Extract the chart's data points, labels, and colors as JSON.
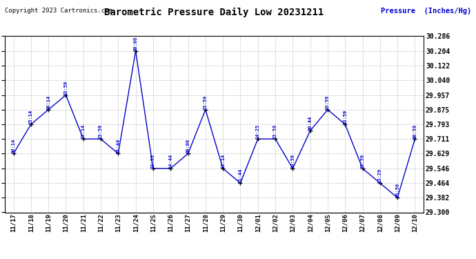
{
  "title": "Barometric Pressure Daily Low 20231211",
  "ylabel": "Pressure  (Inches/Hg)",
  "copyright": "Copyright 2023 Cartronics.com",
  "line_color": "#0000cc",
  "background_color": "#ffffff",
  "grid_color": "#bbbbbb",
  "ylim": [
    29.3,
    30.286
  ],
  "yticks": [
    29.3,
    29.382,
    29.464,
    29.546,
    29.629,
    29.711,
    29.793,
    29.875,
    29.957,
    30.04,
    30.122,
    30.204,
    30.286
  ],
  "dates": [
    "11/17",
    "11/18",
    "11/19",
    "11/20",
    "11/21",
    "11/22",
    "11/23",
    "11/24",
    "11/25",
    "11/26",
    "11/27",
    "11/28",
    "11/29",
    "11/30",
    "12/01",
    "12/02",
    "12/03",
    "12/04",
    "12/05",
    "12/06",
    "12/07",
    "12/08",
    "12/09",
    "12/10"
  ],
  "values": [
    29.629,
    29.793,
    29.875,
    29.957,
    29.711,
    29.711,
    29.629,
    30.204,
    29.546,
    29.546,
    29.629,
    29.875,
    29.546,
    29.464,
    29.711,
    29.711,
    29.546,
    29.757,
    29.875,
    29.793,
    29.546,
    29.464,
    29.382,
    29.711
  ],
  "point_labels": [
    "00:14",
    "15:14",
    "00:14",
    "23:59",
    "13:14",
    "23:59",
    "01:44",
    "00:00",
    "23:59",
    "14:44",
    "00:00",
    "23:59",
    "13:14",
    "11:44",
    "14:25",
    "23:59",
    "10:59",
    "00:44",
    "03:59",
    "23:59",
    "23:59",
    "13:29",
    "05:59",
    "00:59"
  ]
}
